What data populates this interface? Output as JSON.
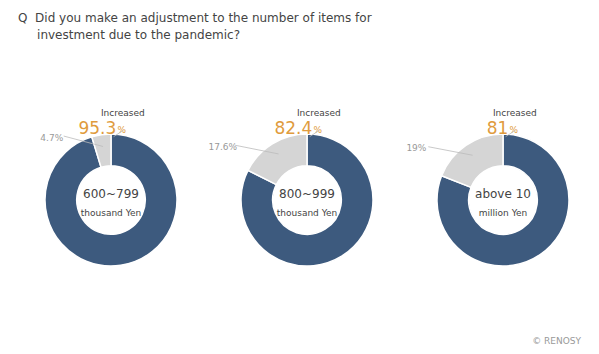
{
  "title": "Q  Did you make an adjustment to the number of items for\n     investment due to the pandemic?",
  "annotations": [
    "© RENOSY"
  ],
  "chart_data": [
    {
      "type": "pie",
      "title": "600~799",
      "subtitle": "thousand Yen",
      "categories": [
        "Increased",
        null
      ],
      "values": [
        95.3,
        4.7
      ],
      "value_labels": [
        "95.3%",
        "4.7%"
      ],
      "colors": [
        "#3d5a7e",
        "#d5d5d5"
      ],
      "data_labels": true
    },
    {
      "type": "pie",
      "title": "800~999",
      "subtitle": "thousand Yen",
      "categories": [
        "Increased",
        null
      ],
      "values": [
        82.4,
        17.6
      ],
      "value_labels": [
        "82.4%",
        "17.6%"
      ],
      "colors": [
        "#3d5a7e",
        "#d5d5d5"
      ],
      "data_labels": true
    },
    {
      "type": "pie",
      "title": "above 10",
      "subtitle": "million Yen",
      "categories": [
        "Increased",
        null
      ],
      "values": [
        81,
        19
      ],
      "value_labels": [
        "81%",
        "19%"
      ],
      "colors": [
        "#3d5a7e",
        "#d5d5d5"
      ],
      "data_labels": true
    }
  ]
}
